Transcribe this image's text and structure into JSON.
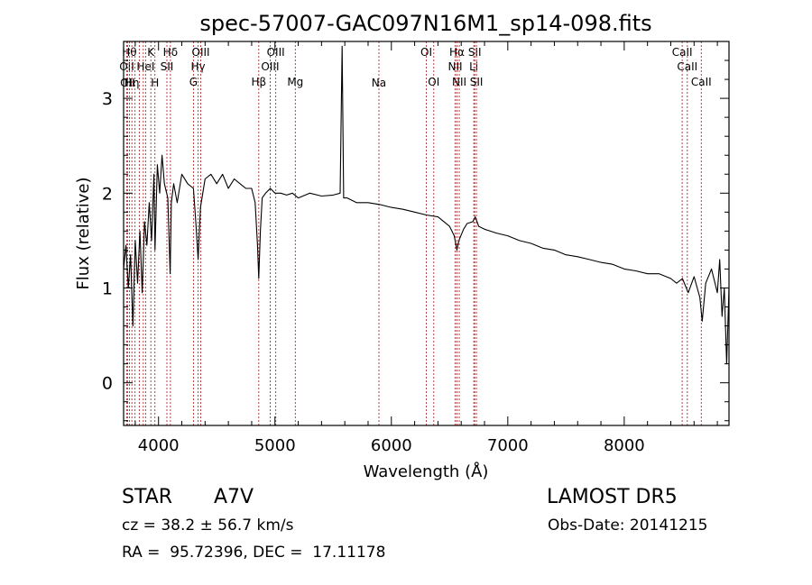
{
  "chart_data": {
    "type": "line",
    "title": "spec-57007-GAC097N16M1_sp14-098.fits",
    "xlabel": "Wavelength (Å)",
    "ylabel": "Flux (relative)",
    "xlim": [
      3700,
      8900
    ],
    "ylim": [
      -0.45,
      3.6
    ],
    "x_ticks": [
      4000,
      5000,
      6000,
      7000,
      8000
    ],
    "y_ticks": [
      0,
      1,
      2,
      3
    ],
    "line_color": "#000000",
    "marker_color": "#b03030",
    "series": [
      {
        "x": [
          3700,
          3720,
          3740,
          3760,
          3780,
          3800,
          3820,
          3840,
          3860,
          3880,
          3900,
          3920,
          3940,
          3960,
          3970,
          3990,
          4010,
          4030,
          4050,
          4080,
          4100,
          4110,
          4130,
          4160,
          4200,
          4250,
          4300,
          4320,
          4340,
          4360,
          4400,
          4450,
          4500,
          4550,
          4600,
          4650,
          4700,
          4750,
          4800,
          4830,
          4850,
          4861,
          4875,
          4890,
          4920,
          4960,
          5000,
          5050,
          5100,
          5150,
          5200,
          5300,
          5400,
          5500,
          5560,
          5577,
          5590,
          5620,
          5700,
          5800,
          5900,
          6000,
          6100,
          6200,
          6300,
          6400,
          6500,
          6540,
          6563,
          6580,
          6620,
          6650,
          6700,
          6720,
          6750,
          6800,
          6850,
          6900,
          7000,
          7100,
          7200,
          7300,
          7400,
          7500,
          7600,
          7700,
          7800,
          7900,
          8000,
          8100,
          8200,
          8300,
          8400,
          8450,
          8500,
          8550,
          8600,
          8650,
          8670,
          8700,
          8750,
          8800,
          8820,
          8840,
          8860,
          8880,
          8900
        ],
        "y": [
          1.2,
          1.45,
          1.0,
          1.35,
          0.6,
          1.5,
          1.05,
          1.6,
          0.95,
          1.7,
          1.45,
          1.9,
          1.5,
          2.2,
          1.4,
          2.3,
          2.0,
          2.4,
          2.1,
          1.95,
          1.15,
          1.9,
          2.1,
          1.9,
          2.2,
          2.1,
          2.05,
          1.7,
          1.3,
          1.85,
          2.15,
          2.2,
          2.1,
          2.2,
          2.05,
          2.15,
          2.1,
          2.05,
          2.05,
          1.9,
          1.45,
          1.1,
          1.6,
          1.95,
          2.0,
          2.05,
          2.0,
          2.0,
          1.98,
          2.0,
          1.95,
          2.0,
          1.97,
          1.98,
          2.0,
          3.55,
          1.95,
          1.95,
          1.9,
          1.9,
          1.88,
          1.85,
          1.83,
          1.8,
          1.77,
          1.75,
          1.65,
          1.55,
          1.4,
          1.5,
          1.62,
          1.68,
          1.7,
          1.75,
          1.65,
          1.62,
          1.6,
          1.58,
          1.55,
          1.5,
          1.47,
          1.42,
          1.4,
          1.35,
          1.33,
          1.3,
          1.27,
          1.25,
          1.2,
          1.18,
          1.15,
          1.15,
          1.1,
          1.05,
          1.1,
          0.95,
          1.12,
          0.9,
          0.65,
          1.05,
          1.2,
          0.95,
          1.3,
          0.7,
          1.0,
          0.2,
          1.0
        ]
      }
    ],
    "line_markers": [
      {
        "x": 3727,
        "label": "OII",
        "row": 2
      },
      {
        "x": 3734,
        "label": "OII",
        "row": 3
      },
      {
        "x": 3750,
        "label": "Hθ",
        "row": 1
      },
      {
        "x": 3771,
        "label": "Hη",
        "row": 3
      },
      {
        "x": 3798,
        "label": "",
        "row": 0
      },
      {
        "x": 3835,
        "label": "",
        "row": 0
      },
      {
        "x": 3869,
        "label": "NeIII",
        "row": 0
      },
      {
        "x": 3889,
        "label": "HeI",
        "row": 2
      },
      {
        "x": 3934,
        "label": "K",
        "row": 1
      },
      {
        "x": 3969,
        "label": "H",
        "row": 3
      },
      {
        "x": 4072,
        "label": "SII",
        "row": 2
      },
      {
        "x": 4102,
        "label": "Hδ",
        "row": 1
      },
      {
        "x": 4300,
        "label": "G",
        "row": 4
      },
      {
        "x": 4340,
        "label": "Hγ",
        "row": 2
      },
      {
        "x": 4363,
        "label": "OIII",
        "row": 1
      },
      {
        "x": 4861,
        "label": "Hβ",
        "row": 4
      },
      {
        "x": 4959,
        "label": "OIII",
        "row": 2
      },
      {
        "x": 5007,
        "label": "OIII",
        "row": 1
      },
      {
        "x": 5175,
        "label": "Mg",
        "row": 4
      },
      {
        "x": 5893,
        "label": "Na",
        "row": 3
      },
      {
        "x": 6300,
        "label": "OI",
        "row": 1
      },
      {
        "x": 6364,
        "label": "OI",
        "row": 4
      },
      {
        "x": 6548,
        "label": "NII",
        "row": 2
      },
      {
        "x": 6563,
        "label": "Hα",
        "row": 1
      },
      {
        "x": 6583,
        "label": "NII",
        "row": 4
      },
      {
        "x": 6708,
        "label": "Li",
        "row": 2
      },
      {
        "x": 6716,
        "label": "SII",
        "row": 1
      },
      {
        "x": 6731,
        "label": "SII",
        "row": 4
      },
      {
        "x": 8498,
        "label": "CaII",
        "row": 1
      },
      {
        "x": 8542,
        "label": "CaII",
        "row": 2
      },
      {
        "x": 8662,
        "label": "CaII",
        "row": 4
      }
    ]
  },
  "info": {
    "object_type": "STAR",
    "subclass": "A7V",
    "survey": "LAMOST DR5",
    "redshift": "cz = 38.2 ± 56.7 km/s",
    "obs_date": "Obs-Date: 20141215",
    "coords": "RA =  95.72396, DEC =  17.11178"
  }
}
